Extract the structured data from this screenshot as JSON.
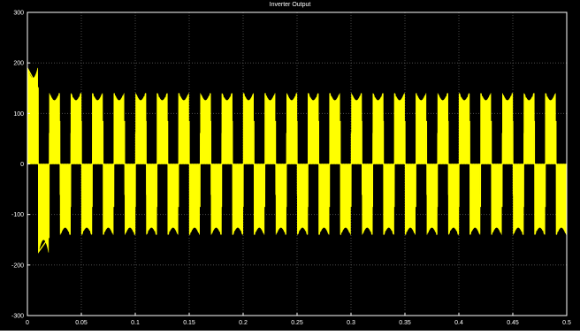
{
  "window": {
    "title": "Inverter Output"
  },
  "chart_data": {
    "type": "line",
    "title": "Inverter Output",
    "xlabel": "",
    "ylabel": "",
    "xlim": [
      0,
      0.5
    ],
    "ylim": [
      -300,
      300
    ],
    "xticks": [
      0,
      0.05,
      0.1,
      0.15,
      0.2,
      0.25,
      0.3,
      0.35,
      0.4,
      0.45,
      0.5
    ],
    "xtick_labels": [
      "0",
      "0.05",
      "0.1",
      "0.15",
      "0.2",
      "0.25",
      "0.3",
      "0.35",
      "0.4",
      "0.45",
      "0.5"
    ],
    "yticks": [
      -300,
      -200,
      -100,
      0,
      100,
      200,
      300
    ],
    "ytick_labels": [
      "-300",
      "-200",
      "-100",
      "0",
      "100",
      "200",
      "300"
    ],
    "grid": true,
    "background": "#000000",
    "axes_color": "#ffffff",
    "grid_color": "#5a5a5a",
    "series": [
      {
        "color": "#ffff00",
        "fundamental_period": 0.02,
        "steady_peak": 140,
        "steady_notch": 125,
        "steady_inner_edge": 60,
        "startup_peak": 190,
        "startup_negative_peak": -175,
        "negative_notch_peak": -148
      }
    ]
  }
}
